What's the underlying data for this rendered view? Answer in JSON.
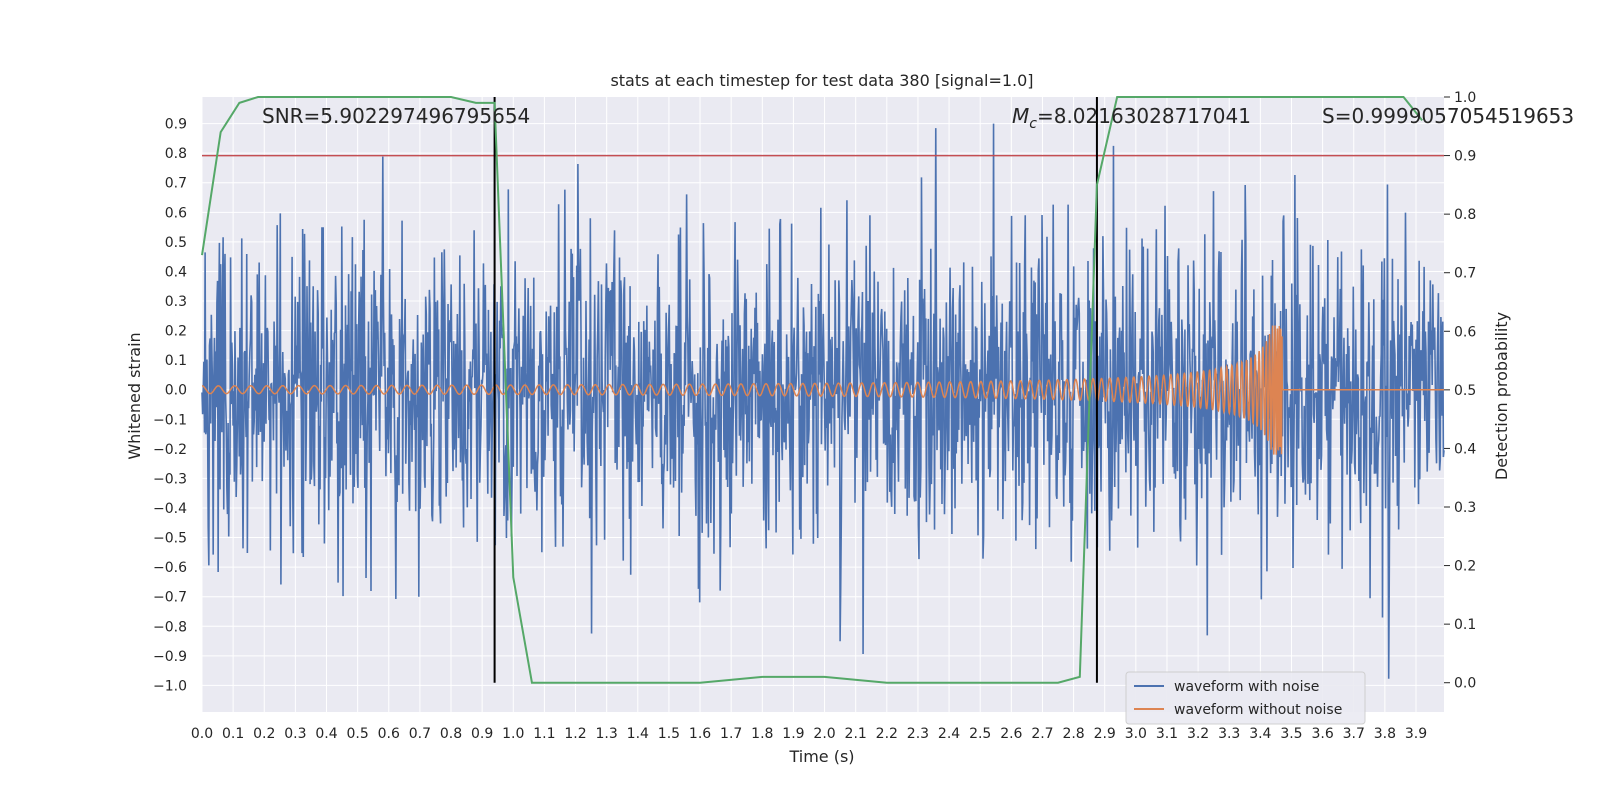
{
  "chart_data": {
    "type": "line",
    "title": "stats at each timestep for test data 380 [signal=1.0]",
    "xlabel": "Time (s)",
    "ylabel_left": "Whitened strain",
    "ylabel_right": "Detection probability",
    "xlim": [
      0.0,
      3.99
    ],
    "ylim_left": [
      -1.09,
      0.99
    ],
    "ylim_right": [
      -0.05,
      1.0
    ],
    "x_ticks": [
      "0.0",
      "0.1",
      "0.2",
      "0.3",
      "0.4",
      "0.5",
      "0.6",
      "0.7",
      "0.8",
      "0.9",
      "1.0",
      "1.1",
      "1.2",
      "1.3",
      "1.4",
      "1.5",
      "1.6",
      "1.7",
      "1.8",
      "1.9",
      "2.0",
      "2.1",
      "2.2",
      "2.3",
      "2.4",
      "2.5",
      "2.6",
      "2.7",
      "2.8",
      "2.9",
      "3.0",
      "3.1",
      "3.2",
      "3.3",
      "3.4",
      "3.5",
      "3.6",
      "3.7",
      "3.8",
      "3.9"
    ],
    "y_left_ticks": [
      "0.9",
      "0.8",
      "0.7",
      "0.6",
      "0.5",
      "0.4",
      "0.3",
      "0.2",
      "0.1",
      "0.0",
      "−0.1",
      "−0.2",
      "−0.3",
      "−0.4",
      "−0.5",
      "−0.6",
      "−0.7",
      "−0.8",
      "−0.9",
      "−1.0"
    ],
    "y_right_ticks": [
      "1.0",
      "0.9",
      "0.8",
      "0.7",
      "0.6",
      "0.5",
      "0.4",
      "0.3",
      "0.2",
      "0.1",
      "0.0"
    ],
    "grid": true,
    "legend_position": "lower-right",
    "annotations": {
      "snr_text": "SNR=5.902297496795654",
      "mc_symbol": "M",
      "mc_sub": "c",
      "mc_value": "=8.02163028717041",
      "s_text": "S=0.9999057054519653"
    },
    "threshold_right": 0.9,
    "vertical_lines_x": [
      0.94,
      2.875
    ],
    "series": [
      {
        "name": "waveform with noise",
        "color": "#4c72b0",
        "description_points": 2000,
        "amplitude_range": [
          -1.0,
          0.9
        ]
      },
      {
        "name": "waveform without noise",
        "color": "#dd8452",
        "chirp_end_time": 3.47,
        "peak_amplitude": 0.22
      },
      {
        "color": "#55a868",
        "axis": "right",
        "x": [
          0.0,
          0.06,
          0.12,
          0.18,
          0.24,
          0.3,
          0.4,
          0.5,
          0.6,
          0.7,
          0.8,
          0.88,
          0.94,
          1.0,
          1.06,
          1.12,
          1.2,
          1.4,
          1.6,
          1.8,
          1.9,
          2.0,
          2.2,
          2.4,
          2.6,
          2.75,
          2.82,
          2.875,
          2.94,
          3.0,
          3.2,
          3.4,
          3.6,
          3.7,
          3.8,
          3.86,
          3.92
        ],
        "values": [
          0.73,
          0.94,
          0.99,
          1.0,
          1.0,
          1.0,
          1.0,
          1.0,
          1.0,
          1.0,
          1.0,
          0.99,
          0.99,
          0.18,
          0.0,
          0.0,
          0.0,
          0.0,
          0.0,
          0.01,
          0.01,
          0.01,
          0.0,
          0.0,
          0.0,
          0.0,
          0.01,
          0.85,
          1.0,
          1.0,
          1.0,
          1.0,
          1.0,
          1.0,
          1.0,
          1.0,
          0.96
        ]
      }
    ]
  },
  "colors": {
    "plot_bg": "#eaeaf2",
    "grid": "#ffffff",
    "threshold": "#c44e52",
    "vline": "#000000"
  }
}
